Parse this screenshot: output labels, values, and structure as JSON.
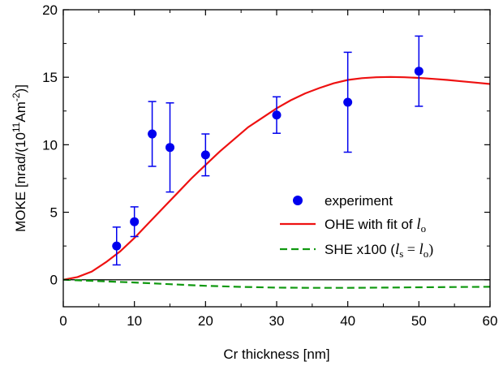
{
  "chart_data": {
    "type": "scatter",
    "xlabel": "Cr thickness [nm]",
    "ylabel": {
      "prefix": "MOKE [nrad/(10",
      "exp1": "11",
      "mid": "Am",
      "exp2": "-2",
      "suffix": ")]"
    },
    "xlim": [
      0,
      60
    ],
    "ylim": [
      -2,
      20
    ],
    "xticks": [
      0,
      10,
      20,
      30,
      40,
      50,
      60
    ],
    "yticks": [
      0,
      5,
      10,
      15,
      20
    ],
    "reference_line_y": 0,
    "legend_position": "center-right",
    "series": [
      {
        "name": "experiment",
        "kind": "points_with_error_bars",
        "color": "#0000ee",
        "x": [
          7.5,
          10,
          12.5,
          15,
          20,
          30,
          40,
          50
        ],
        "y": [
          2.5,
          4.3,
          10.8,
          9.8,
          9.25,
          12.2,
          13.15,
          15.45
        ],
        "err_low": [
          1.4,
          1.1,
          2.4,
          3.3,
          1.55,
          1.35,
          3.7,
          2.6
        ],
        "err_high": [
          1.4,
          1.1,
          2.4,
          3.3,
          1.55,
          1.35,
          3.7,
          2.6
        ]
      },
      {
        "name": "OHE with fit of l_o",
        "kind": "line",
        "color": "#ee1111",
        "x": [
          0,
          2,
          4,
          6,
          8,
          10,
          12,
          14,
          16,
          18,
          20,
          22,
          24,
          26,
          28,
          30,
          32,
          34,
          36,
          38,
          40,
          42,
          44,
          46,
          48,
          50,
          52,
          54,
          56,
          58,
          60
        ],
        "y": [
          0,
          0.2,
          0.6,
          1.3,
          2.1,
          3.1,
          4.2,
          5.3,
          6.4,
          7.5,
          8.5,
          9.5,
          10.4,
          11.3,
          12.0,
          12.7,
          13.3,
          13.8,
          14.2,
          14.55,
          14.8,
          14.93,
          15.0,
          15.02,
          15.0,
          14.95,
          14.88,
          14.8,
          14.7,
          14.6,
          14.5
        ]
      },
      {
        "name": "SHE x100 (l_s = l_o)",
        "kind": "dashed_line",
        "color": "#119911",
        "x": [
          0,
          5,
          10,
          15,
          20,
          25,
          30,
          35,
          40,
          45,
          50,
          55,
          60
        ],
        "y": [
          0,
          -0.1,
          -0.2,
          -0.33,
          -0.45,
          -0.53,
          -0.58,
          -0.6,
          -0.6,
          -0.58,
          -0.56,
          -0.54,
          -0.52
        ]
      }
    ],
    "legend": {
      "experiment": "experiment",
      "ohe_text": "OHE with fit of ",
      "ohe_var": "l",
      "ohe_sub": "o",
      "she_text": "SHE x100 (",
      "she_var1": "l",
      "she_sub1": "s",
      "she_eq": " = ",
      "she_var2": "l",
      "she_sub2": "o",
      "she_close": ")"
    }
  }
}
